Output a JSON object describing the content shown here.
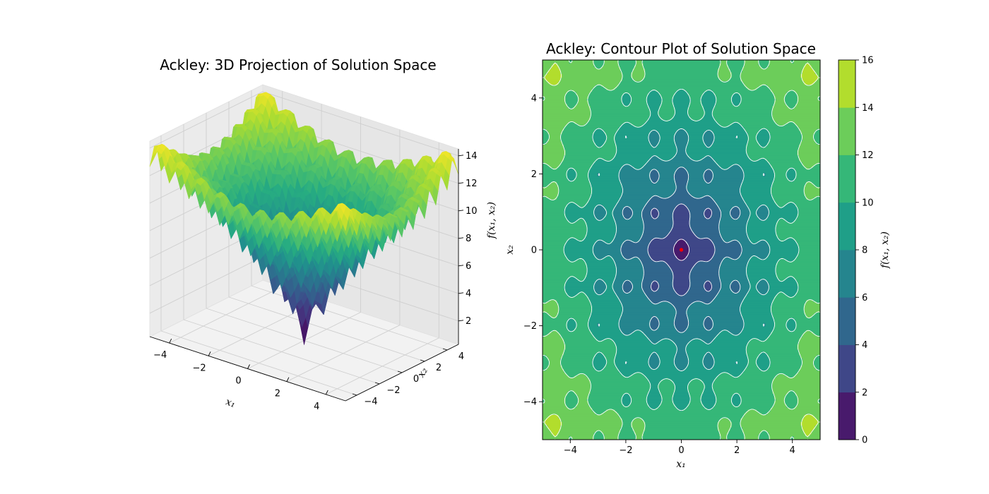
{
  "chart_data": [
    {
      "type": "surface",
      "title": "Ackley: 3D Projection of Solution Space",
      "xlabel": "x₁",
      "ylabel": "x₂",
      "zlabel": "f(x₁, x₂)",
      "xlim": [
        -5,
        5
      ],
      "ylim": [
        -5,
        5
      ],
      "zlim": [
        0.3,
        14.5
      ],
      "x_ticks": [
        -4,
        -2,
        0,
        2,
        4
      ],
      "y_ticks": [
        -4,
        -2,
        0,
        2,
        4
      ],
      "z_ticks": [
        2,
        4,
        6,
        8,
        10,
        12,
        14
      ],
      "x_tick_labels": [
        "−4",
        "−2",
        "0",
        "2",
        "4"
      ],
      "y_tick_labels": [
        "−4",
        "−2",
        "0",
        "2",
        "4"
      ],
      "z_tick_labels": [
        "2",
        "4",
        "6",
        "8",
        "10",
        "12",
        "14"
      ],
      "function": "ackley",
      "colormap": "viridis",
      "grid": true
    },
    {
      "type": "contour",
      "title": "Ackley: Contour Plot of Solution Space",
      "xlabel": "x₁",
      "ylabel": "x₂",
      "xlim": [
        -5,
        5
      ],
      "ylim": [
        -5,
        5
      ],
      "x_ticks": [
        -4,
        -2,
        0,
        2,
        4
      ],
      "y_ticks": [
        -4,
        -2,
        0,
        2,
        4
      ],
      "x_tick_labels": [
        "−4",
        "−2",
        "0",
        "2",
        "4"
      ],
      "y_tick_labels": [
        "−4",
        "−2",
        "0",
        "2",
        "4"
      ],
      "levels": [
        0,
        2,
        4,
        6,
        8,
        10,
        12,
        14,
        16
      ],
      "level_colors": [
        "#481a6c",
        "#3f4788",
        "#30678d",
        "#25858e",
        "#1f9f88",
        "#35b778",
        "#6ccd5a",
        "#b2dd2d",
        "#fde725"
      ],
      "colorbar_label": "f(x₁, x₂)",
      "colorbar_ticks": [
        "0",
        "2",
        "4",
        "6",
        "8",
        "10",
        "12",
        "14",
        "16"
      ],
      "minimum_marker": {
        "x": 0,
        "y": 0,
        "color": "#ff0000"
      }
    }
  ]
}
